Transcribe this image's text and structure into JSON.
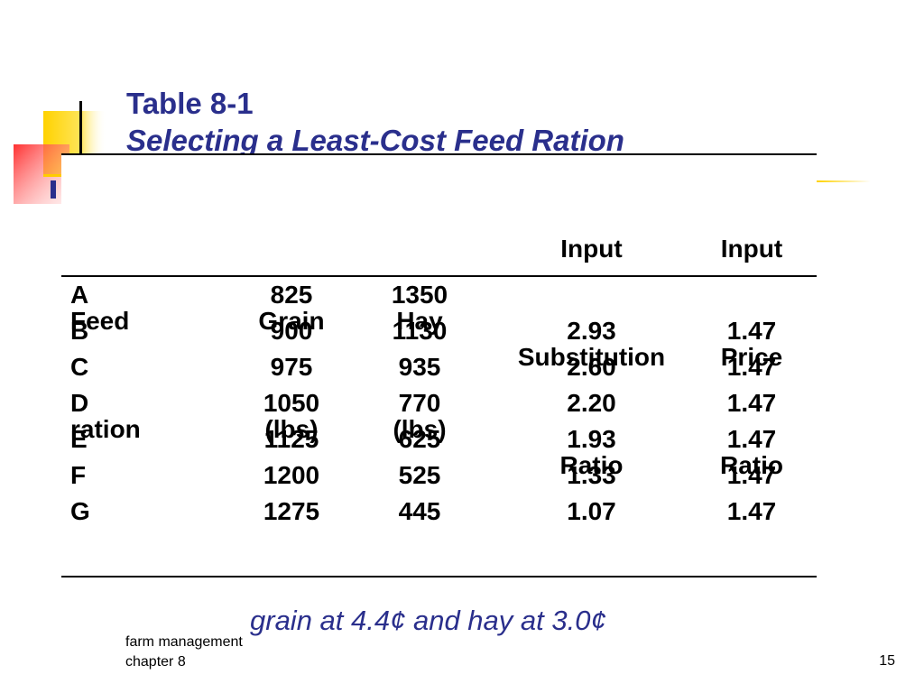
{
  "slide": {
    "title_line1": "Table 8-1",
    "title_line2": "Selecting a Least-Cost Feed Ration"
  },
  "table": {
    "headers": {
      "feed": [
        "",
        "Feed",
        "ration"
      ],
      "grain": [
        "",
        "Grain",
        "(lbs)"
      ],
      "hay": [
        "",
        "Hay",
        "(lbs)"
      ],
      "isr": [
        "Input",
        "Substitution",
        "Ratio"
      ],
      "ipr": [
        "Input",
        "Price",
        "Ratio"
      ]
    },
    "rows": [
      {
        "feed": "A",
        "grain": "825",
        "hay": "1350",
        "isr": "",
        "ipr": ""
      },
      {
        "feed": "B",
        "grain": "900",
        "hay": "1130",
        "isr": "2.93",
        "ipr": "1.47"
      },
      {
        "feed": "C",
        "grain": "975",
        "hay": "935",
        "isr": "2.60",
        "ipr": "1.47"
      },
      {
        "feed": "D",
        "grain": "1050",
        "hay": "770",
        "isr": "2.20",
        "ipr": "1.47"
      },
      {
        "feed": "E",
        "grain": "1125",
        "hay": "625",
        "isr": "1.93",
        "ipr": "1.47"
      },
      {
        "feed": "F",
        "grain": "1200",
        "hay": "525",
        "isr": "1.33",
        "ipr": "1.47"
      },
      {
        "feed": "G",
        "grain": "1275",
        "hay": "445",
        "isr": "1.07",
        "ipr": "1.47"
      }
    ]
  },
  "footnote": "grain at 4.4¢ and hay at 3.0¢",
  "footer": {
    "line1": "farm management",
    "line2": "chapter 8",
    "page_number": "15"
  },
  "colors": {
    "title": "#2a2f8c",
    "accent_yellow": "#ffd700",
    "accent_red": "#ff5555",
    "accent_blue": "#2a2f8c"
  }
}
